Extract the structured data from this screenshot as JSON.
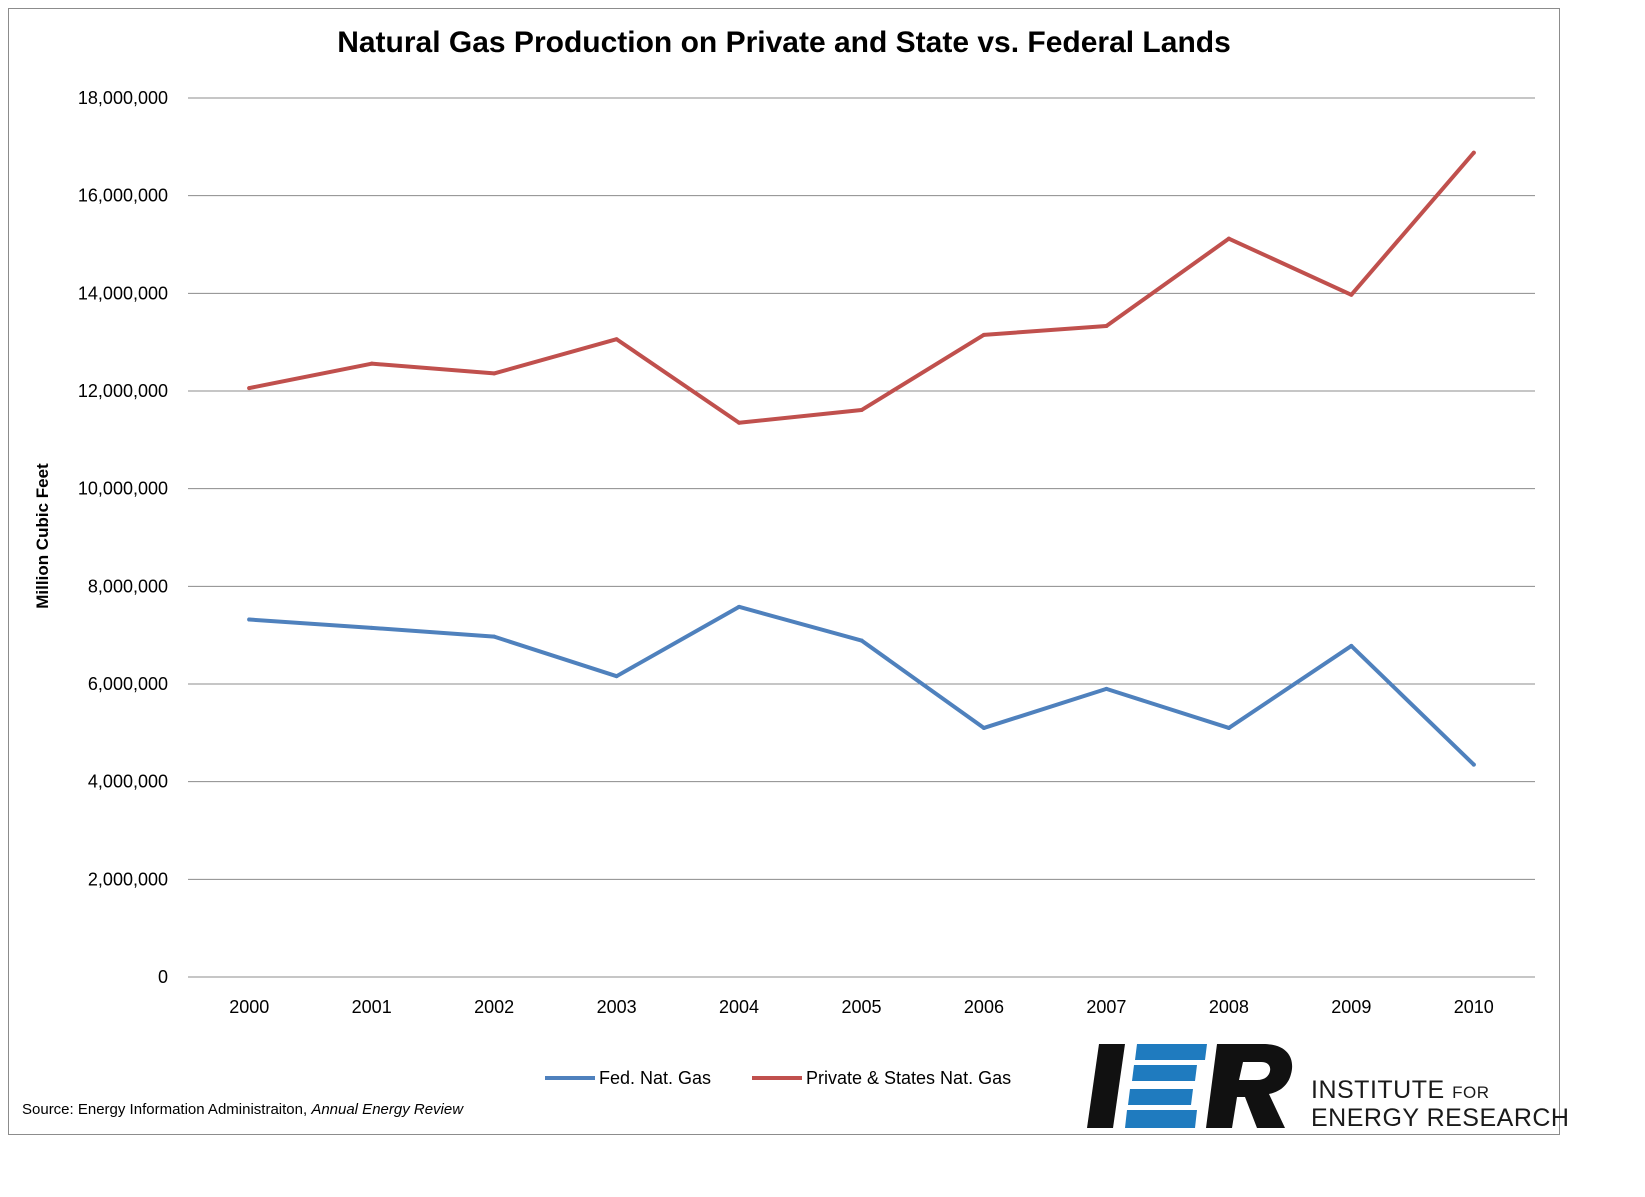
{
  "chart_data": {
    "type": "line",
    "title": "Natural Gas Production on Private and State vs. Federal Lands",
    "xlabel": "",
    "ylabel": "Million Cubic Feet",
    "categories": [
      "2000",
      "2001",
      "2002",
      "2003",
      "2004",
      "2005",
      "2006",
      "2007",
      "2008",
      "2009",
      "2010"
    ],
    "ylim": [
      0,
      18000000
    ],
    "yticks": [
      "0",
      "2,000,000",
      "4,000,000",
      "6,000,000",
      "8,000,000",
      "10,000,000",
      "12,000,000",
      "14,000,000",
      "16,000,000",
      "18,000,000"
    ],
    "grid": true,
    "legend_position": "bottom",
    "series": [
      {
        "name": "Fed. Nat. Gas",
        "color": "#4f81bd",
        "values": [
          7320000,
          7150000,
          6970000,
          6160000,
          7580000,
          6890000,
          5100000,
          5900000,
          5100000,
          6780000,
          4350000
        ]
      },
      {
        "name": "Private & States Nat. Gas",
        "color": "#c0504d",
        "values": [
          12060000,
          12560000,
          12360000,
          13060000,
          11350000,
          11610000,
          13150000,
          13330000,
          15120000,
          13970000,
          16880000
        ]
      }
    ]
  },
  "source": {
    "prefix": "Source: Energy Information Administraiton, ",
    "publication": "Annual Energy Review"
  },
  "logo": {
    "mark": "IER",
    "line1_main": "INSTITUTE",
    "line1_small": "FOR",
    "line2": "ENERGY RESEARCH"
  }
}
